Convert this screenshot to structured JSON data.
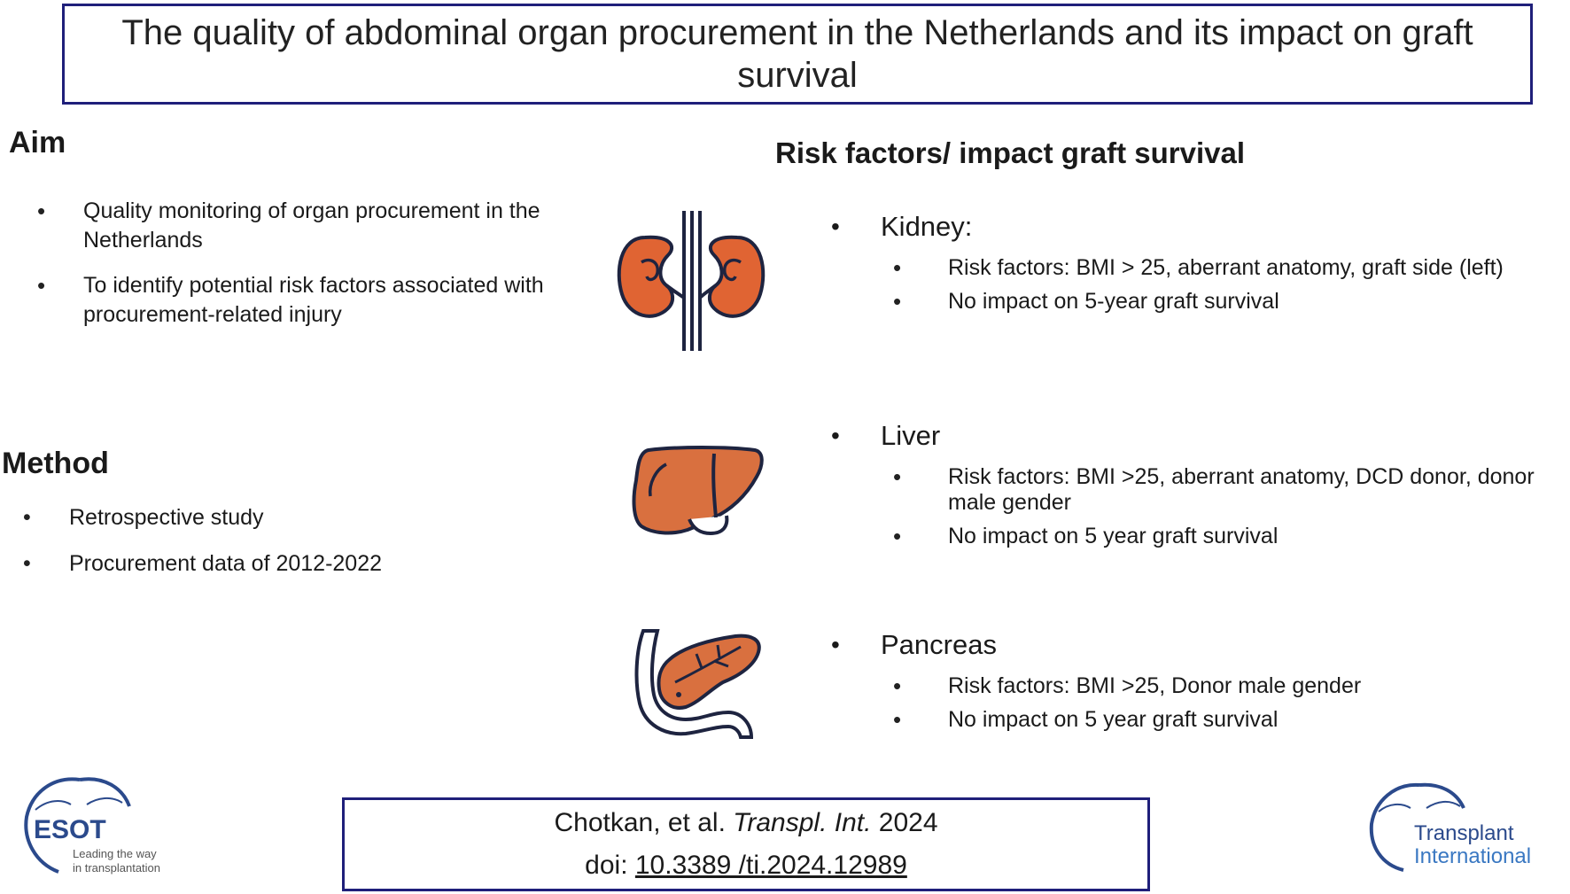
{
  "title": "The quality of abdominal organ procurement in the Netherlands and its impact on graft survival",
  "aim": {
    "heading": "Aim",
    "items": [
      "Quality monitoring of organ procurement in the Netherlands",
      "To identify potential risk factors associated with procurement-related injury"
    ]
  },
  "method": {
    "heading": "Method",
    "items": [
      "Retrospective study",
      "Procurement data of 2012-2022"
    ]
  },
  "risk": {
    "heading": "Risk factors/ impact graft survival",
    "organs": [
      {
        "name": "Kidney:",
        "items": [
          "Risk factors: BMI > 25, aberrant anatomy, graft side (left)",
          "No impact on 5-year graft survival"
        ]
      },
      {
        "name": "Liver",
        "items": [
          "Risk factors: BMI >25, aberrant anatomy, DCD donor, donor male gender",
          "No impact on 5 year graft survival"
        ]
      },
      {
        "name": "Pancreas",
        "items": [
          "Risk factors: BMI >25, Donor male gender",
          "No impact on 5 year graft survival"
        ]
      }
    ]
  },
  "citation": {
    "authors": "Chotkan, et al. ",
    "journal": "Transpl. Int.",
    "year": " 2024",
    "doi_label": "doi: ",
    "doi": "10.3389 /ti.2024.12989"
  },
  "logos": {
    "esot_name": "ESOT",
    "esot_tagline_1": "Leading the way",
    "esot_tagline_2": "in transplantation",
    "ti_line_1": "Transplant",
    "ti_line_2": "International"
  },
  "icons": [
    "kidney-icon",
    "liver-icon",
    "pancreas-icon"
  ],
  "colors": {
    "border": "#1f1f7a",
    "organ_fill": "#d9703f",
    "kidney_fill": "#e06433",
    "outline": "#1e2440",
    "esot_blue": "#2b4a8c",
    "ti_blue": "#3a78c2"
  }
}
